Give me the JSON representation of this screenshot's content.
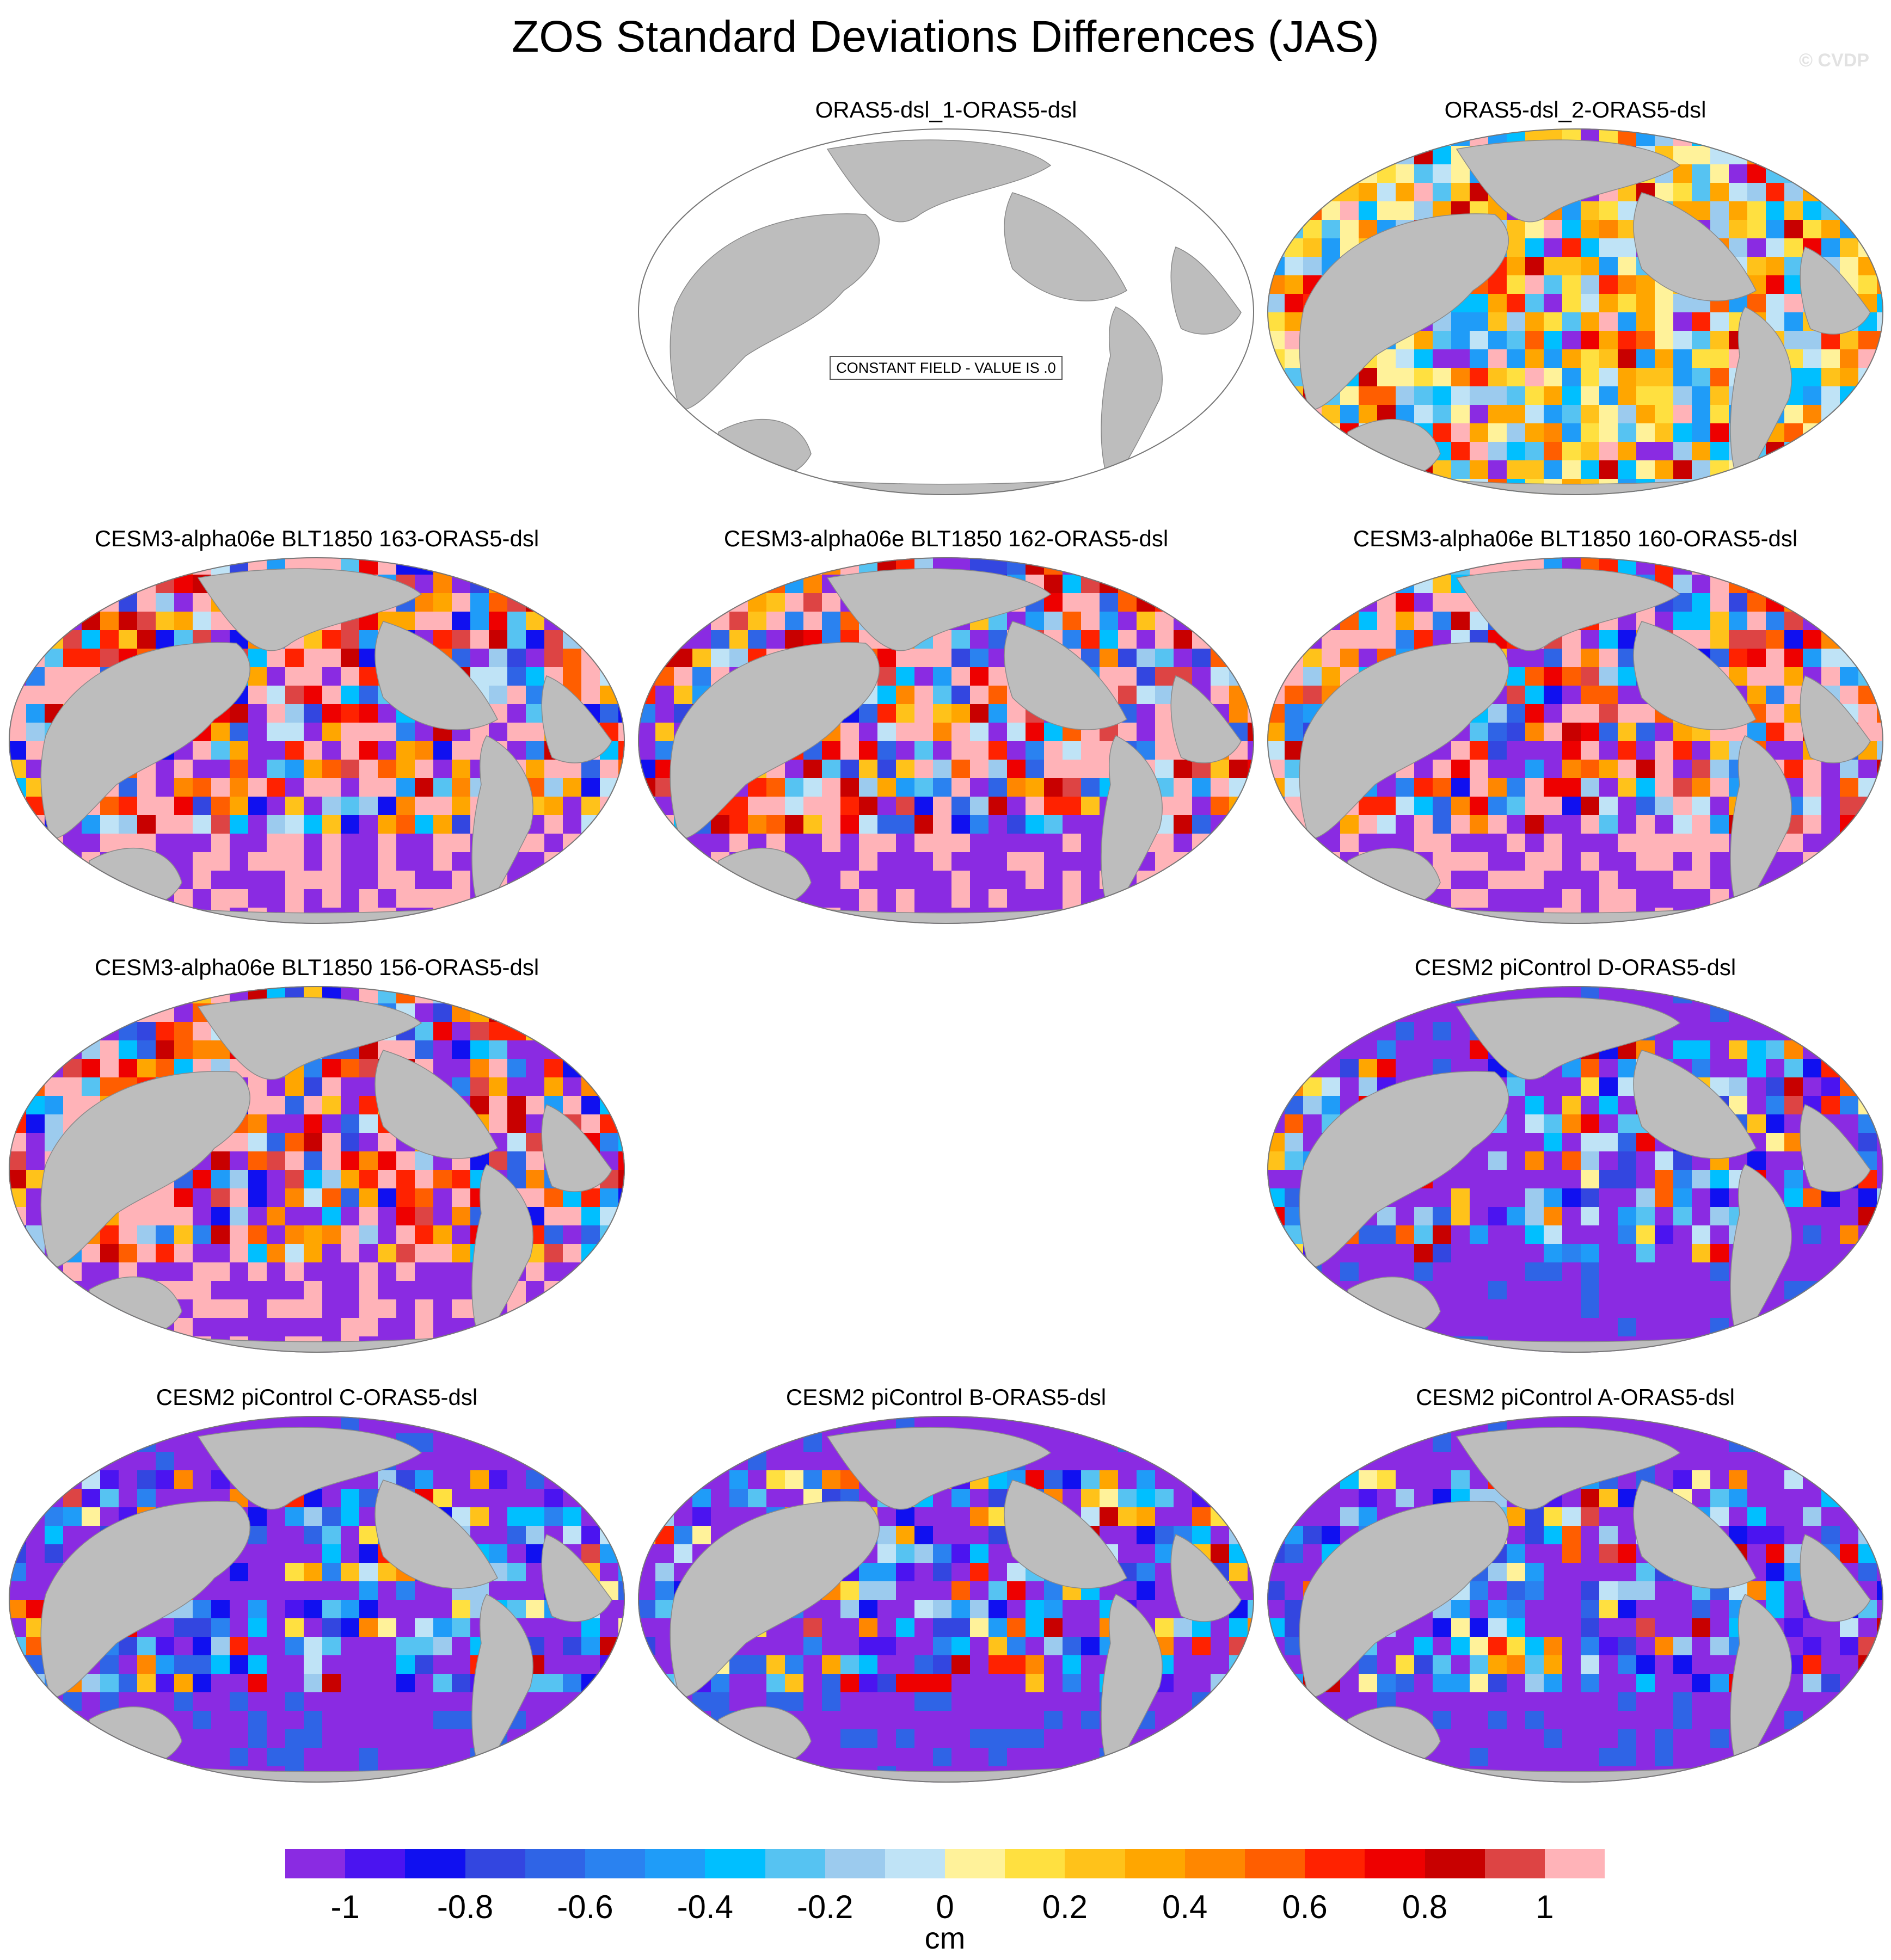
{
  "title": "ZOS Standard Deviations Differences (JAS)",
  "watermark": "© CVDP",
  "panels": [
    {
      "title": "ORAS5-dsl_1-ORAS5-dsl",
      "constant": true,
      "constant_label": "CONSTANT FIELD - VALUE IS .0"
    },
    {
      "title": "ORAS5-dsl_2-ORAS5-dsl",
      "style": "near"
    },
    {
      "title": "CESM3-alpha06e BLT1850 163-ORAS5-dsl",
      "style": "pos"
    },
    {
      "title": "CESM3-alpha06e BLT1850 162-ORAS5-dsl",
      "style": "pos"
    },
    {
      "title": "CESM3-alpha06e BLT1850 160-ORAS5-dsl",
      "style": "pos"
    },
    {
      "title": "CESM3-alpha06e BLT1850 156-ORAS5-dsl",
      "style": "pos"
    },
    {
      "title": "CESM2 piControl D-ORAS5-dsl",
      "style": "neg"
    },
    {
      "title": "CESM2 piControl C-ORAS5-dsl",
      "style": "neg"
    },
    {
      "title": "CESM2 piControl B-ORAS5-dsl",
      "style": "neg"
    },
    {
      "title": "CESM2 piControl A-ORAS5-dsl",
      "style": "neg"
    }
  ],
  "colorbar": {
    "units": "cm",
    "colors": [
      "#8a2be2",
      "#4b14f0",
      "#1010f0",
      "#3346e0",
      "#2f64e6",
      "#2a82f0",
      "#1f9cf8",
      "#00bfff",
      "#56c3f2",
      "#9ccbee",
      "#bfe3f6",
      "#fff29a",
      "#ffe040",
      "#ffc21a",
      "#ffa600",
      "#ff8700",
      "#ff5e00",
      "#ff2200",
      "#ee0000",
      "#c80000",
      "#dd4444",
      "#ffb3b8"
    ],
    "tick_labels": [
      "-1",
      "-0.8",
      "-0.6",
      "-0.4",
      "-0.2",
      "0",
      "0.2",
      "0.4",
      "0.6",
      "0.8",
      "1"
    ]
  }
}
